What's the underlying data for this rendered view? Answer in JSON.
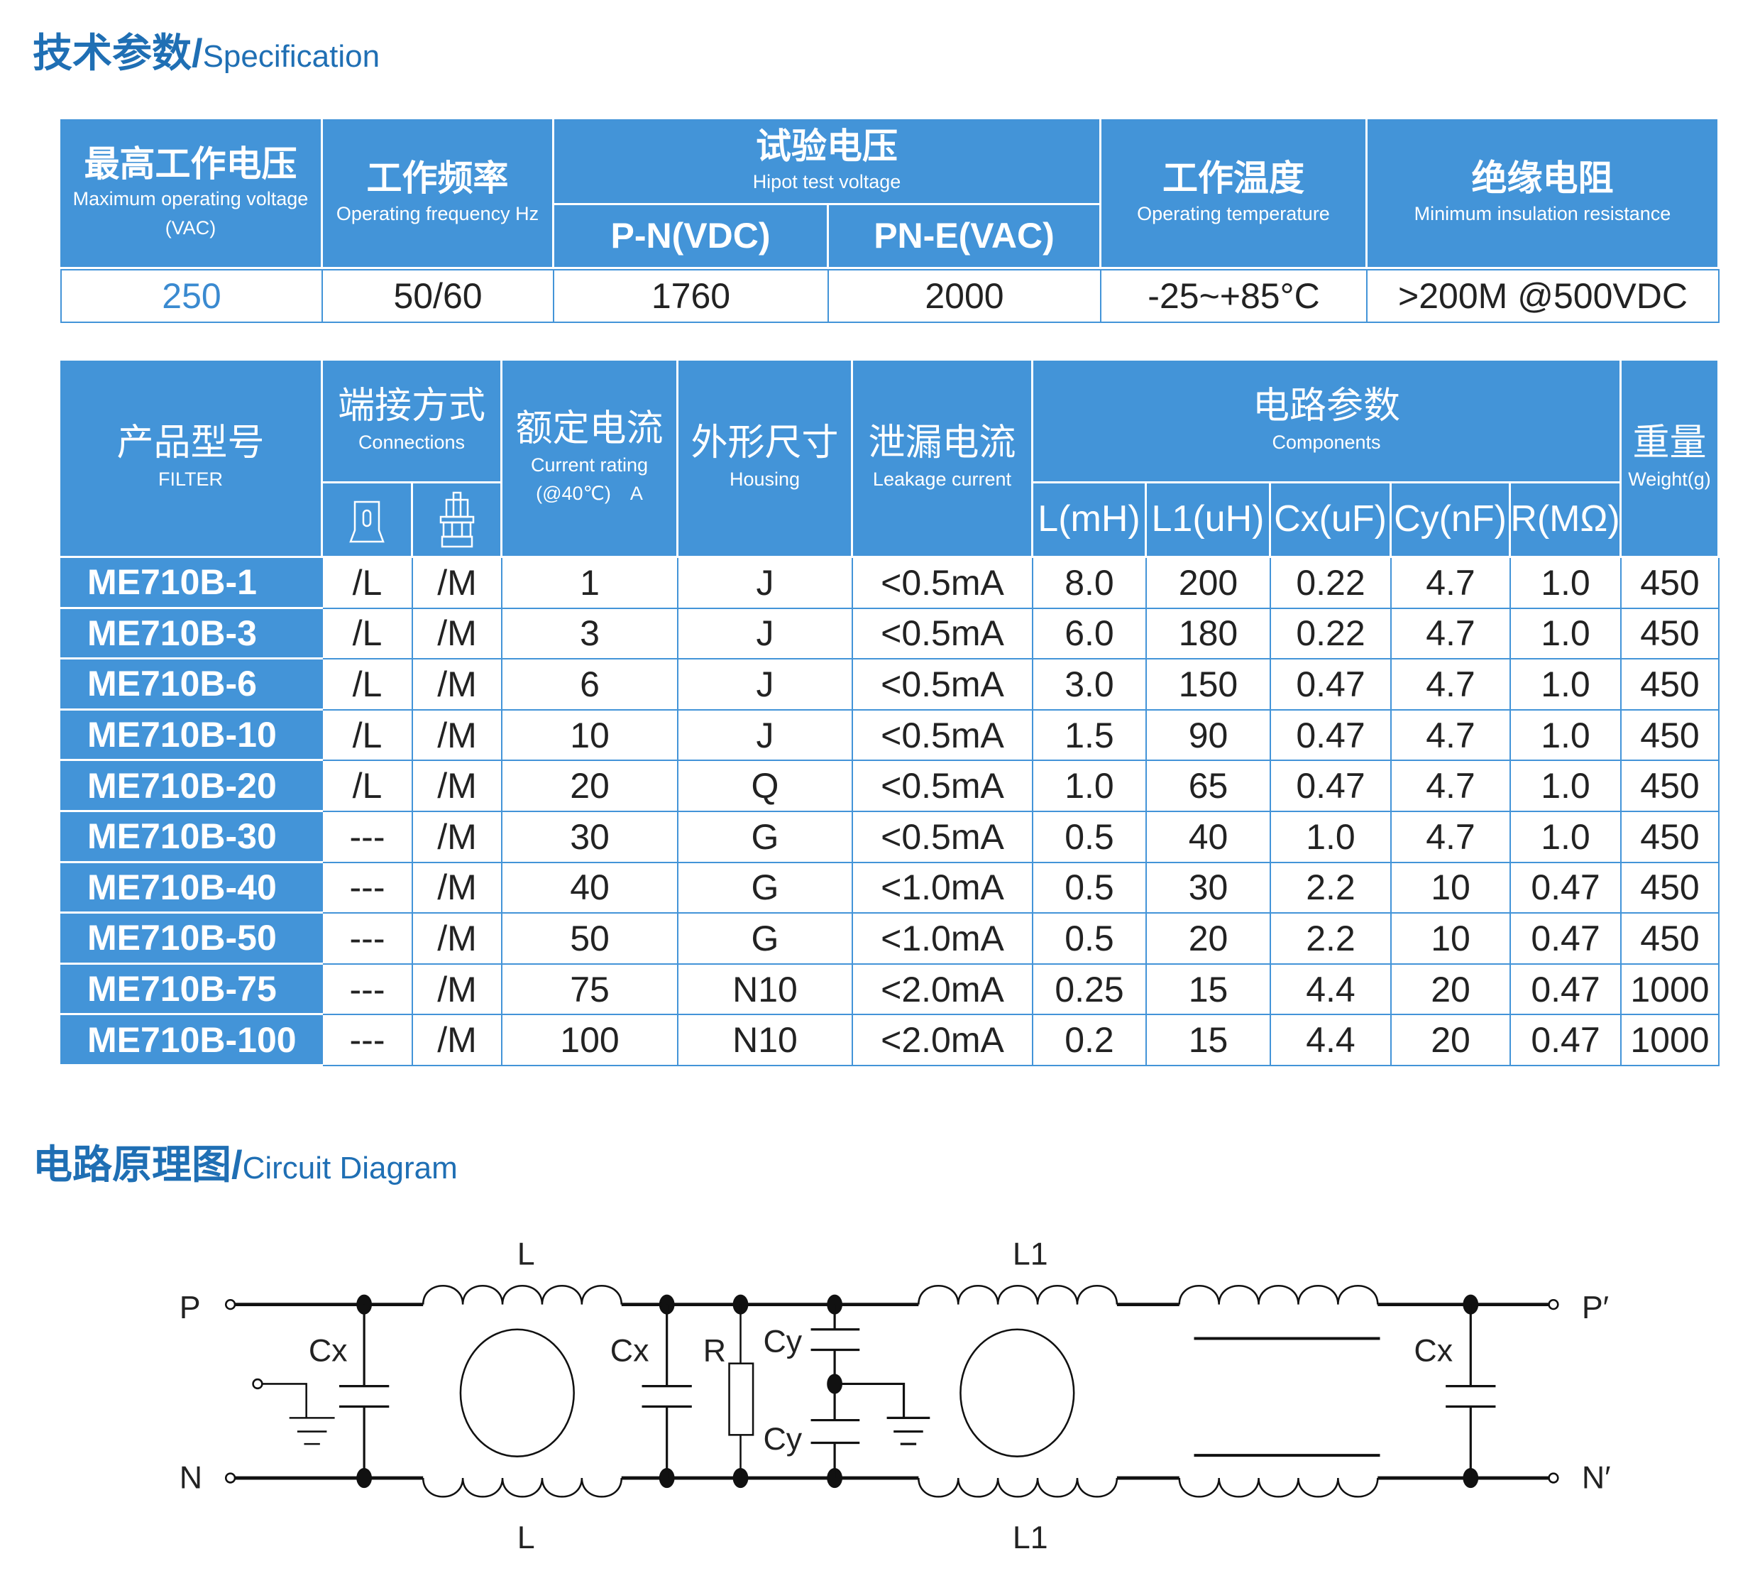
{
  "spec_title": {
    "zh": "技术参数/",
    "en": "Specification"
  },
  "spec_table": {
    "headers": [
      {
        "zh": "最高工作电压",
        "en": "Maximum operating voltage　(VAC)"
      },
      {
        "zh": "工作频率",
        "en": "Operating frequency Hz"
      },
      {
        "zh": "试验电压",
        "en": "Hipot test voltage"
      },
      {
        "zh": "工作温度",
        "en": "Operating temperature"
      },
      {
        "zh": "绝缘电阻",
        "en": "Minimum insulation resistance"
      }
    ],
    "hipot_sub": [
      "P-N(VDC)",
      "PN-E(VAC)"
    ],
    "values": [
      "250",
      "50/60",
      "1760",
      "2000",
      "-25~+85°C",
      ">200M @500VDC"
    ]
  },
  "filter_table": {
    "headers": {
      "model": {
        "zh": "产品型号",
        "en": "FILTER"
      },
      "connections": {
        "zh": "端接方式",
        "en": "Connections",
        "icons": [
          "lug-terminal-icon",
          "screw-terminal-icon"
        ]
      },
      "current": {
        "zh": "额定电流",
        "en": "Current rating (@40℃)　A"
      },
      "housing": {
        "zh": "外形尺寸",
        "en": "Housing"
      },
      "leakage": {
        "zh": "泄漏电流",
        "en": "Leakage current"
      },
      "components": {
        "zh": "电路参数",
        "en": "Components",
        "sub": [
          "L(mH)",
          "L1(uH)",
          "Cx(uF)",
          "Cy(nF)",
          "R(MΩ)"
        ]
      },
      "weight": {
        "zh": "重量",
        "en": "Weight(g)"
      }
    },
    "rows": [
      [
        "ME710B-1",
        "/L",
        "/M",
        "1",
        "J",
        "<0.5mA",
        "8.0",
        "200",
        "0.22",
        "4.7",
        "1.0",
        "450"
      ],
      [
        "ME710B-3",
        "/L",
        "/M",
        "3",
        "J",
        "<0.5mA",
        "6.0",
        "180",
        "0.22",
        "4.7",
        "1.0",
        "450"
      ],
      [
        "ME710B-6",
        "/L",
        "/M",
        "6",
        "J",
        "<0.5mA",
        "3.0",
        "150",
        "0.47",
        "4.7",
        "1.0",
        "450"
      ],
      [
        "ME710B-10",
        "/L",
        "/M",
        "10",
        "J",
        "<0.5mA",
        "1.5",
        "90",
        "0.47",
        "4.7",
        "1.0",
        "450"
      ],
      [
        "ME710B-20",
        "/L",
        "/M",
        "20",
        "Q",
        "<0.5mA",
        "1.0",
        "65",
        "0.47",
        "4.7",
        "1.0",
        "450"
      ],
      [
        "ME710B-30",
        "---",
        "/M",
        "30",
        "G",
        "<0.5mA",
        "0.5",
        "40",
        "1.0",
        "4.7",
        "1.0",
        "450"
      ],
      [
        "ME710B-40",
        "---",
        "/M",
        "40",
        "G",
        "<1.0mA",
        "0.5",
        "30",
        "2.2",
        "10",
        "0.47",
        "450"
      ],
      [
        "ME710B-50",
        "---",
        "/M",
        "50",
        "G",
        "<1.0mA",
        "0.5",
        "20",
        "2.2",
        "10",
        "0.47",
        "450"
      ],
      [
        "ME710B-75",
        "---",
        "/M",
        "75",
        "N10",
        "<2.0mA",
        "0.25",
        "15",
        "4.4",
        "20",
        "0.47",
        "1000"
      ],
      [
        "ME710B-100",
        "---",
        "/M",
        "100",
        "N10",
        "<2.0mA",
        "0.2",
        "15",
        "4.4",
        "20",
        "0.47",
        "1000"
      ]
    ]
  },
  "circuit_title": {
    "zh": "电路原理图/",
    "en": "Circuit Diagram"
  },
  "circuit": {
    "labels": {
      "p": "P",
      "n": "N",
      "p_out": "P′",
      "n_out": "N′",
      "l": "L",
      "l1": "L1",
      "cx": "Cx",
      "cy": "Cy",
      "r": "R"
    }
  },
  "colors": {
    "accent": "#4394d8",
    "title": "#1f6fb4"
  }
}
